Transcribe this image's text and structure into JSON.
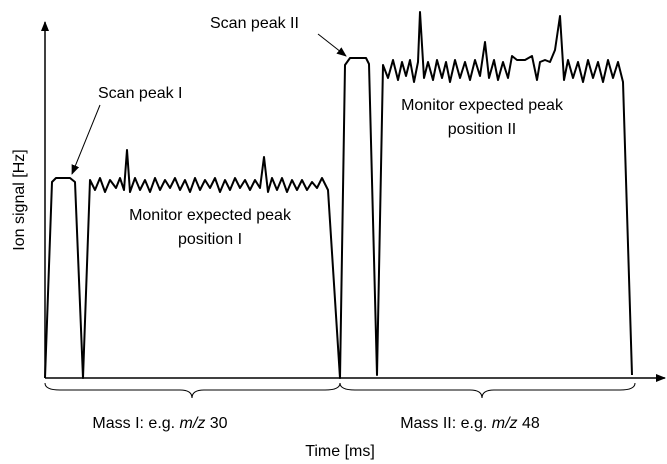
{
  "y_axis": {
    "label": "Ion signal [Hz]"
  },
  "x_axis": {
    "label": "Time [ms]"
  },
  "annotations": {
    "scan_peak_1": "Scan peak I",
    "scan_peak_2": "Scan peak II",
    "monitor_1": [
      "Monitor expected peak",
      "position I"
    ],
    "monitor_2": [
      "Monitor expected peak",
      "position II"
    ]
  },
  "segments": [
    {
      "prefix": "Mass I: e.g. ",
      "italic": "m/z",
      "suffix": " 30"
    },
    {
      "prefix": "Mass II: e.g. ",
      "italic": "m/z",
      "suffix": " 48"
    }
  ]
}
